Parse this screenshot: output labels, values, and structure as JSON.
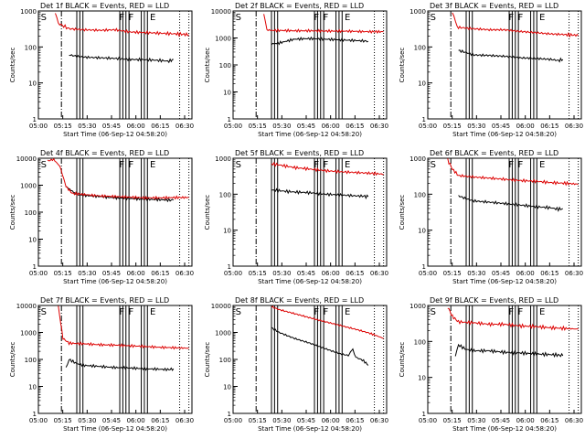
{
  "chart_data": [
    {
      "type": "line",
      "title": "Det 1f BLACK = Events, RED = LLD",
      "xlabel": "Start Time (06-Sep-12 04:58:20)",
      "ylabel": "Counts/sec",
      "yscale": "log",
      "ylim": [
        1,
        1000
      ],
      "yticks": [
        "1",
        "10",
        "100",
        "1000"
      ],
      "xticks": [
        "05:00",
        "05:15",
        "05:30",
        "05:45",
        "06:00",
        "06:15",
        "06:30"
      ],
      "xlim": [
        0,
        100
      ],
      "flags": [
        "S",
        "F",
        "F",
        "E"
      ],
      "series": [
        {
          "name": "Events",
          "color": "#000000",
          "x": [
            20,
            25,
            30,
            40,
            50,
            60,
            70,
            80,
            85,
            88
          ],
          "values": [
            60,
            55,
            52,
            50,
            48,
            45,
            44,
            42,
            40,
            45
          ]
        },
        {
          "name": "LLD",
          "color": "#dd0000",
          "x": [
            11,
            13,
            20,
            30,
            40,
            50,
            60,
            70,
            80,
            90,
            98
          ],
          "values": [
            900,
            450,
            320,
            300,
            290,
            300,
            260,
            250,
            240,
            230,
            220
          ]
        }
      ]
    },
    {
      "type": "line",
      "title": "Det 2f BLACK = Events, RED = LLD",
      "xlabel": "Start Time (06-Sep-12 04:58:20)",
      "ylabel": "Counts/sec",
      "yscale": "log",
      "ylim": [
        1,
        10000
      ],
      "yticks": [
        "1",
        "10",
        "100",
        "1000",
        "10000"
      ],
      "xticks": [
        "05:00",
        "05:15",
        "05:30",
        "05:45",
        "06:00",
        "06:15",
        "06:30"
      ],
      "xlim": [
        0,
        100
      ],
      "flags": [
        "S",
        "F",
        "F",
        "E"
      ],
      "series": [
        {
          "name": "Events",
          "color": "#000000",
          "x": [
            25,
            30,
            40,
            50,
            60,
            70,
            80,
            85,
            88
          ],
          "values": [
            600,
            650,
            900,
            950,
            900,
            850,
            800,
            780,
            750
          ]
        },
        {
          "name": "LLD",
          "color": "#dd0000",
          "x": [
            20,
            22,
            25,
            30,
            40,
            50,
            60,
            70,
            80,
            90,
            98
          ],
          "values": [
            8000,
            2000,
            1900,
            1900,
            1850,
            1850,
            1800,
            1800,
            1750,
            1700,
            1700
          ]
        }
      ]
    },
    {
      "type": "line",
      "title": "Det 3f BLACK = Events, RED = LLD",
      "xlabel": "Start Time (06-Sep-12 04:58:20)",
      "ylabel": "Counts/sec",
      "yscale": "log",
      "ylim": [
        1,
        1000
      ],
      "yticks": [
        "1",
        "10",
        "100",
        "1000"
      ],
      "xticks": [
        "05:00",
        "05:15",
        "05:30",
        "05:45",
        "06:00",
        "06:15",
        "06:30"
      ],
      "xlim": [
        0,
        100
      ],
      "flags": [
        "S",
        "F",
        "F",
        "E"
      ],
      "series": [
        {
          "name": "Events",
          "color": "#000000",
          "x": [
            20,
            25,
            30,
            40,
            50,
            60,
            70,
            80,
            85,
            88
          ],
          "values": [
            80,
            70,
            60,
            58,
            55,
            50,
            48,
            45,
            42,
            45
          ]
        },
        {
          "name": "LLD",
          "color": "#dd0000",
          "x": [
            16,
            18,
            20,
            30,
            40,
            50,
            60,
            70,
            80,
            90,
            98
          ],
          "values": [
            900,
            500,
            350,
            320,
            300,
            300,
            270,
            250,
            230,
            220,
            210
          ]
        }
      ]
    },
    {
      "type": "line",
      "title": "Det 4f BLACK = Events, RED = LLD",
      "xlabel": "Start Time (06-Sep-12 04:58:20)",
      "ylabel": "Counts/sec",
      "yscale": "log",
      "ylim": [
        1,
        10000
      ],
      "yticks": [
        "1",
        "10",
        "100",
        "1000",
        "10000"
      ],
      "xticks": [
        "05:00",
        "05:15",
        "05:30",
        "05:45",
        "06:00",
        "06:15",
        "06:30"
      ],
      "xlim": [
        0,
        100
      ],
      "flags": [
        "S",
        "F",
        "F",
        "E"
      ],
      "series": [
        {
          "name": "Events",
          "color": "#000000",
          "x": [
            18,
            22,
            25,
            30,
            40,
            50,
            60,
            70,
            80,
            85,
            88
          ],
          "values": [
            900,
            600,
            450,
            420,
            380,
            340,
            320,
            300,
            290,
            280,
            280
          ]
        },
        {
          "name": "LLD",
          "color": "#dd0000",
          "x": [
            6,
            10,
            14,
            18,
            22,
            30,
            40,
            50,
            60,
            70,
            80,
            90,
            98
          ],
          "values": [
            8000,
            9000,
            5000,
            900,
            500,
            450,
            400,
            380,
            360,
            340,
            340,
            350,
            350
          ]
        }
      ]
    },
    {
      "type": "line",
      "title": "Det 5f BLACK = Events, RED = LLD",
      "xlabel": "Start Time (06-Sep-12 04:58:20)",
      "ylabel": "Counts/sec",
      "yscale": "log",
      "ylim": [
        1,
        1000
      ],
      "yticks": [
        "1",
        "10",
        "100",
        "1000"
      ],
      "xticks": [
        "05:00",
        "05:15",
        "05:30",
        "05:45",
        "06:00",
        "06:15",
        "06:30"
      ],
      "xlim": [
        0,
        100
      ],
      "flags": [
        "S",
        "F",
        "F",
        "E"
      ],
      "series": [
        {
          "name": "Events",
          "color": "#000000",
          "x": [
            25,
            30,
            40,
            50,
            60,
            70,
            80,
            85,
            88
          ],
          "values": [
            130,
            125,
            115,
            110,
            100,
            95,
            90,
            88,
            85
          ]
        },
        {
          "name": "LLD",
          "color": "#dd0000",
          "x": [
            25,
            30,
            40,
            50,
            60,
            70,
            80,
            90,
            98
          ],
          "values": [
            700,
            650,
            550,
            500,
            450,
            420,
            400,
            380,
            360
          ]
        }
      ]
    },
    {
      "type": "line",
      "title": "Det 6f BLACK = Events, RED = LLD",
      "xlabel": "Start Time (06-Sep-12 04:58:20)",
      "ylabel": "Counts/sec",
      "yscale": "log",
      "ylim": [
        1,
        1000
      ],
      "yticks": [
        "1",
        "10",
        "100",
        "1000"
      ],
      "xticks": [
        "05:00",
        "05:15",
        "05:30",
        "05:45",
        "06:00",
        "06:15",
        "06:30"
      ],
      "xlim": [
        0,
        100
      ],
      "flags": [
        "S",
        "F",
        "F",
        "E"
      ],
      "series": [
        {
          "name": "Events",
          "color": "#000000",
          "x": [
            20,
            25,
            30,
            40,
            50,
            60,
            70,
            80,
            85,
            88
          ],
          "values": [
            90,
            75,
            65,
            60,
            55,
            50,
            45,
            42,
            38,
            40
          ]
        },
        {
          "name": "LLD",
          "color": "#dd0000",
          "x": [
            13,
            16,
            20,
            30,
            40,
            50,
            60,
            70,
            80,
            90,
            98
          ],
          "values": [
            900,
            500,
            330,
            300,
            280,
            260,
            240,
            230,
            210,
            200,
            190
          ]
        }
      ]
    },
    {
      "type": "line",
      "title": "Det 7f BLACK = Events, RED = LLD",
      "xlabel": "Start Time (06-Sep-12 04:58:20)",
      "ylabel": "Counts/sec",
      "yscale": "log",
      "ylim": [
        1,
        10000
      ],
      "yticks": [
        "1",
        "10",
        "100",
        "1000",
        "10000"
      ],
      "xticks": [
        "05:00",
        "05:15",
        "05:30",
        "05:45",
        "06:00",
        "06:15",
        "06:30"
      ],
      "xlim": [
        0,
        100
      ],
      "flags": [
        "S",
        "F",
        "F",
        "E"
      ],
      "series": [
        {
          "name": "Events",
          "color": "#000000",
          "x": [
            18,
            20,
            25,
            30,
            40,
            50,
            60,
            70,
            80,
            85,
            88
          ],
          "values": [
            50,
            100,
            70,
            60,
            55,
            50,
            48,
            45,
            43,
            42,
            45
          ]
        },
        {
          "name": "LLD",
          "color": "#dd0000",
          "x": [
            13,
            16,
            20,
            30,
            40,
            50,
            60,
            70,
            80,
            90,
            98
          ],
          "values": [
            9000,
            600,
            400,
            380,
            350,
            340,
            320,
            300,
            280,
            270,
            260
          ]
        }
      ]
    },
    {
      "type": "line",
      "title": "Det 8f BLACK = Events, RED = LLD",
      "xlabel": "Start Time (06-Sep-12 04:58:20)",
      "ylabel": "Counts/sec",
      "yscale": "log",
      "ylim": [
        1,
        10000
      ],
      "yticks": [
        "1",
        "10",
        "100",
        "1000",
        "10000"
      ],
      "xticks": [
        "05:00",
        "05:15",
        "05:30",
        "05:45",
        "06:00",
        "06:15",
        "06:30"
      ],
      "xlim": [
        0,
        100
      ],
      "flags": [
        "S",
        "F",
        "F",
        "E"
      ],
      "series": [
        {
          "name": "Events",
          "color": "#000000",
          "x": [
            25,
            30,
            40,
            50,
            60,
            70,
            75,
            78,
            80,
            85,
            88
          ],
          "values": [
            1500,
            1000,
            600,
            400,
            250,
            160,
            140,
            250,
            120,
            90,
            60
          ]
        },
        {
          "name": "LLD",
          "color": "#dd0000",
          "x": [
            25,
            30,
            40,
            50,
            60,
            70,
            80,
            90,
            98
          ],
          "values": [
            9000,
            7000,
            5000,
            3500,
            2500,
            1800,
            1300,
            900,
            600
          ]
        }
      ]
    },
    {
      "type": "line",
      "title": "Det 9f BLACK = Events, RED = LLD",
      "xlabel": "Start Time (06-Sep-12 04:58:20)",
      "ylabel": "Counts/sec",
      "yscale": "log",
      "ylim": [
        1,
        1000
      ],
      "yticks": [
        "1",
        "10",
        "100",
        "1000"
      ],
      "xticks": [
        "05:00",
        "05:15",
        "05:30",
        "05:45",
        "06:00",
        "06:15",
        "06:30"
      ],
      "xlim": [
        0,
        100
      ],
      "flags": [
        "S",
        "F",
        "F",
        "E"
      ],
      "series": [
        {
          "name": "Events",
          "color": "#000000",
          "x": [
            18,
            20,
            25,
            30,
            40,
            50,
            60,
            70,
            80,
            85,
            88
          ],
          "values": [
            40,
            80,
            60,
            55,
            55,
            50,
            48,
            45,
            43,
            42,
            40
          ]
        },
        {
          "name": "LLD",
          "color": "#dd0000",
          "x": [
            13,
            16,
            20,
            30,
            40,
            50,
            60,
            70,
            80,
            90,
            98
          ],
          "values": [
            900,
            500,
            350,
            330,
            300,
            300,
            270,
            260,
            240,
            230,
            220
          ]
        }
      ]
    }
  ]
}
